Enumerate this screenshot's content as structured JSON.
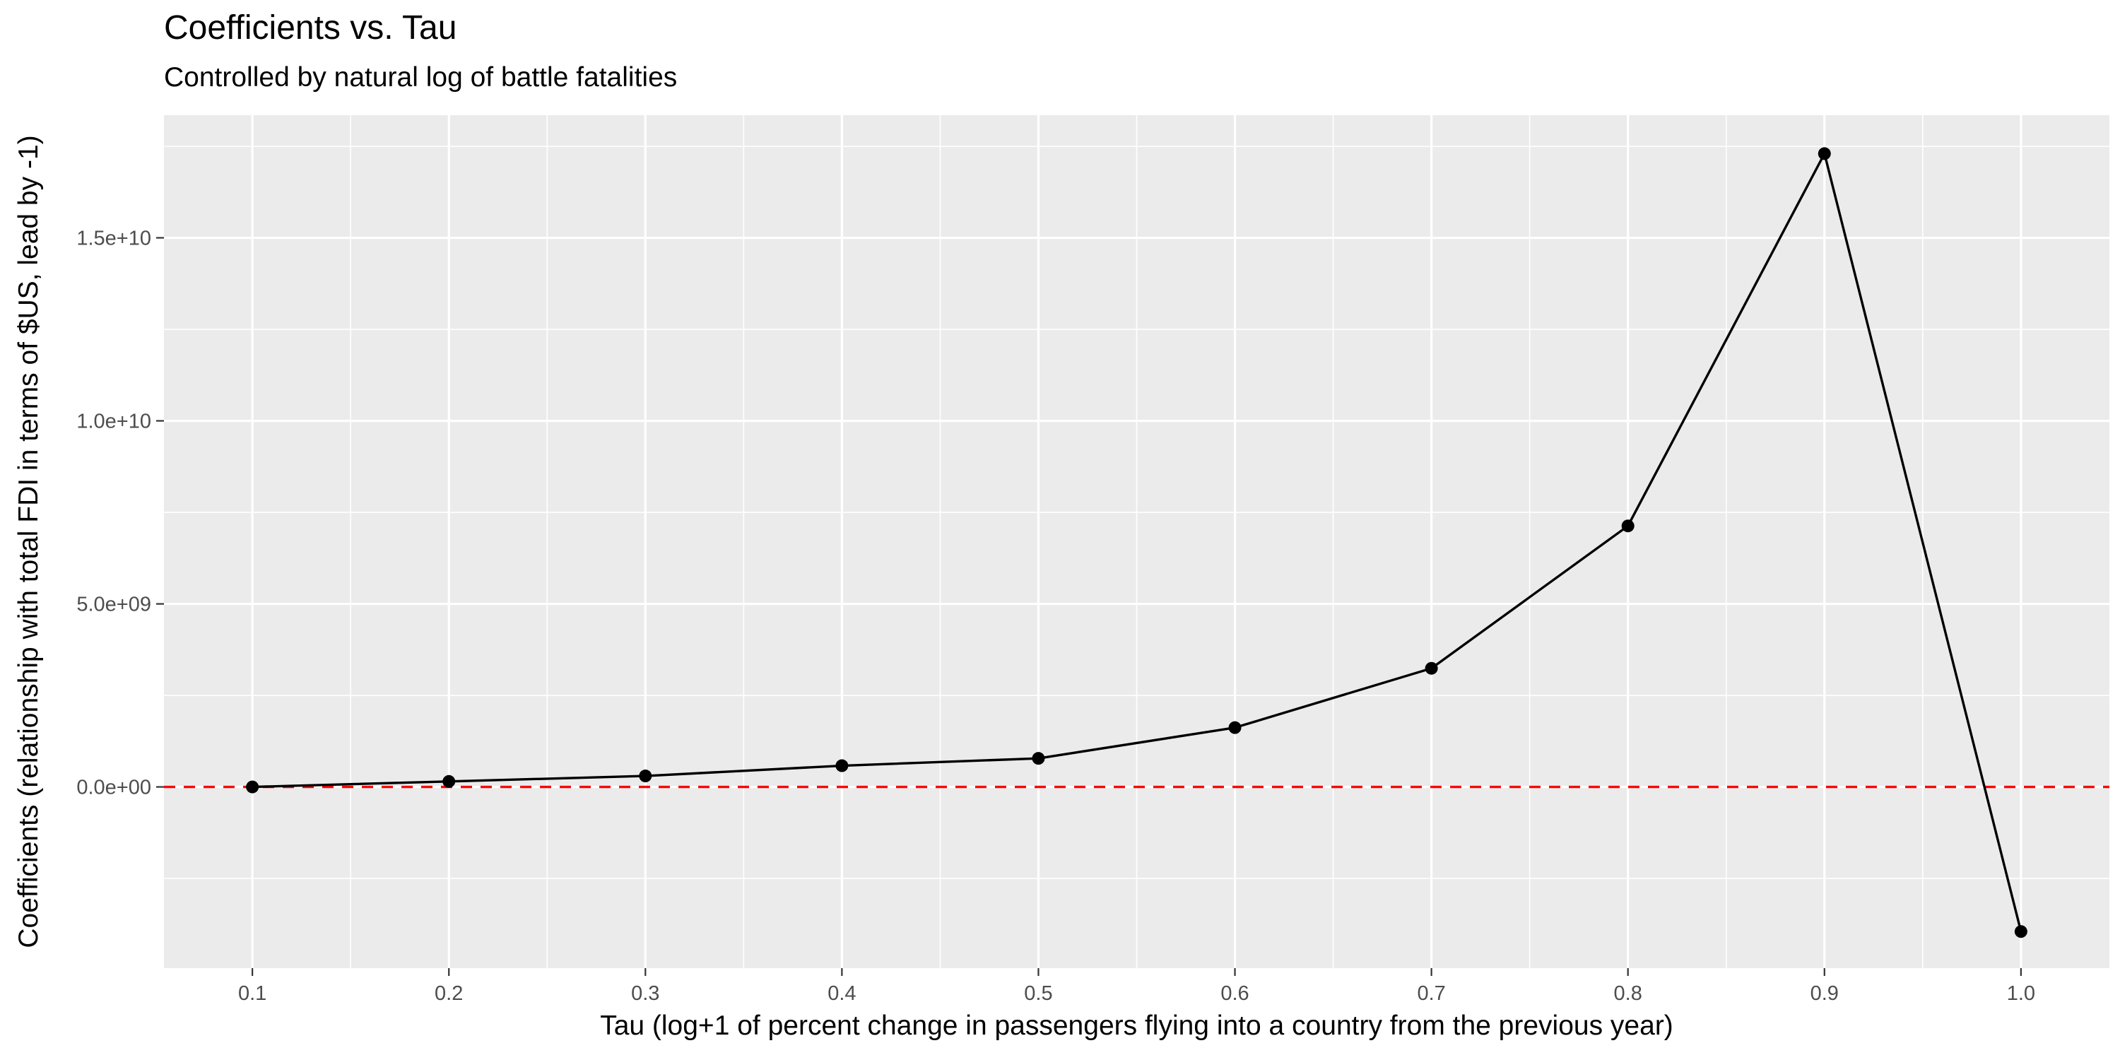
{
  "chart_data": {
    "type": "line",
    "title": "Coefficients vs. Tau",
    "subtitle": "Controlled by natural log of battle fatalities",
    "xlabel": "Tau (log+1 of percent change in passengers flying into a country from the previous year)",
    "ylabel": "Coefficients (relationship with total FDI in terms of $US, lead by -1)",
    "x": [
      0.1,
      0.2,
      0.3,
      0.4,
      0.5,
      0.6,
      0.7,
      0.8,
      0.9,
      1.0
    ],
    "series": [
      {
        "values": [
          0,
          150000000,
          300000000,
          580000000,
          780000000,
          1620000000,
          3240000000,
          7130000000,
          17300000000,
          -3950000000
        ],
        "color": "#000000"
      }
    ],
    "reference_line": {
      "y": 0,
      "color": "#ff0000",
      "style": "dashed"
    },
    "x_ticks": [
      0.1,
      0.2,
      0.3,
      0.4,
      0.5,
      0.6,
      0.7,
      0.8,
      0.9,
      1.0
    ],
    "x_tick_labels": [
      "0.1",
      "0.2",
      "0.3",
      "0.4",
      "0.5",
      "0.6",
      "0.7",
      "0.8",
      "0.9",
      "1.0"
    ],
    "y_ticks": [
      0,
      5000000000,
      10000000000,
      15000000000
    ],
    "y_tick_labels": [
      "0.0e+00",
      "5.0e+09",
      "1.0e+10",
      "1.5e+10"
    ],
    "xlim": [
      0.055,
      1.045
    ],
    "ylim": [
      -4950000000,
      18350000000
    ],
    "grid": true,
    "panel_color": "#ebebeb",
    "grid_color": "#ffffff"
  }
}
